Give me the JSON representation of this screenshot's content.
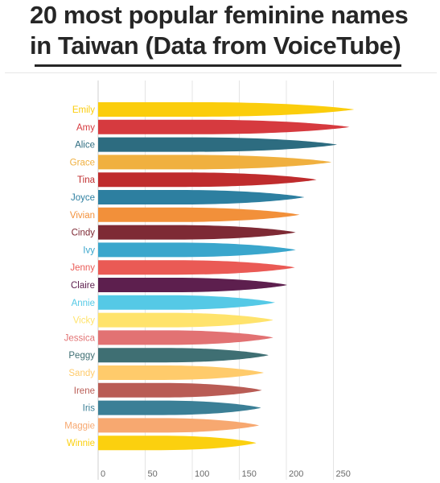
{
  "title_lines": [
    "20 most popular feminine names",
    "in Taiwan (Data from VoiceTube)"
  ],
  "chart_data": {
    "type": "bar",
    "orientation": "horizontal",
    "title": "20 most popular feminine names in Taiwan (Data from VoiceTube)",
    "xlabel": "",
    "ylabel": "",
    "xlim": [
      0,
      280
    ],
    "xticks": [
      0,
      50,
      100,
      150,
      200,
      250
    ],
    "grid": true,
    "categories": [
      "Emily",
      "Amy",
      "Alice",
      "Grace",
      "Tina",
      "Joyce",
      "Vivian",
      "Cindy",
      "Ivy",
      "Jenny",
      "Claire",
      "Annie",
      "Vicky",
      "Jessica",
      "Peggy",
      "Sandy",
      "Irene",
      "Iris",
      "Maggie",
      "Winnie"
    ],
    "values": [
      272,
      267,
      254,
      248,
      232,
      219,
      214,
      210,
      210,
      209,
      201,
      188,
      186,
      186,
      181,
      176,
      174,
      173,
      171,
      168
    ],
    "colors": [
      "#fbcd0c",
      "#d63a3f",
      "#2d6c80",
      "#f0b03f",
      "#bf2c2d",
      "#2d7fa0",
      "#f2903a",
      "#7e2a35",
      "#3aa6cc",
      "#ea5a55",
      "#5d1f4e",
      "#55c9e6",
      "#ffe36c",
      "#e27273",
      "#3f6f73",
      "#ffcb6b",
      "#b95c55",
      "#3b7f96",
      "#f7a870",
      "#fbd00f"
    ]
  }
}
